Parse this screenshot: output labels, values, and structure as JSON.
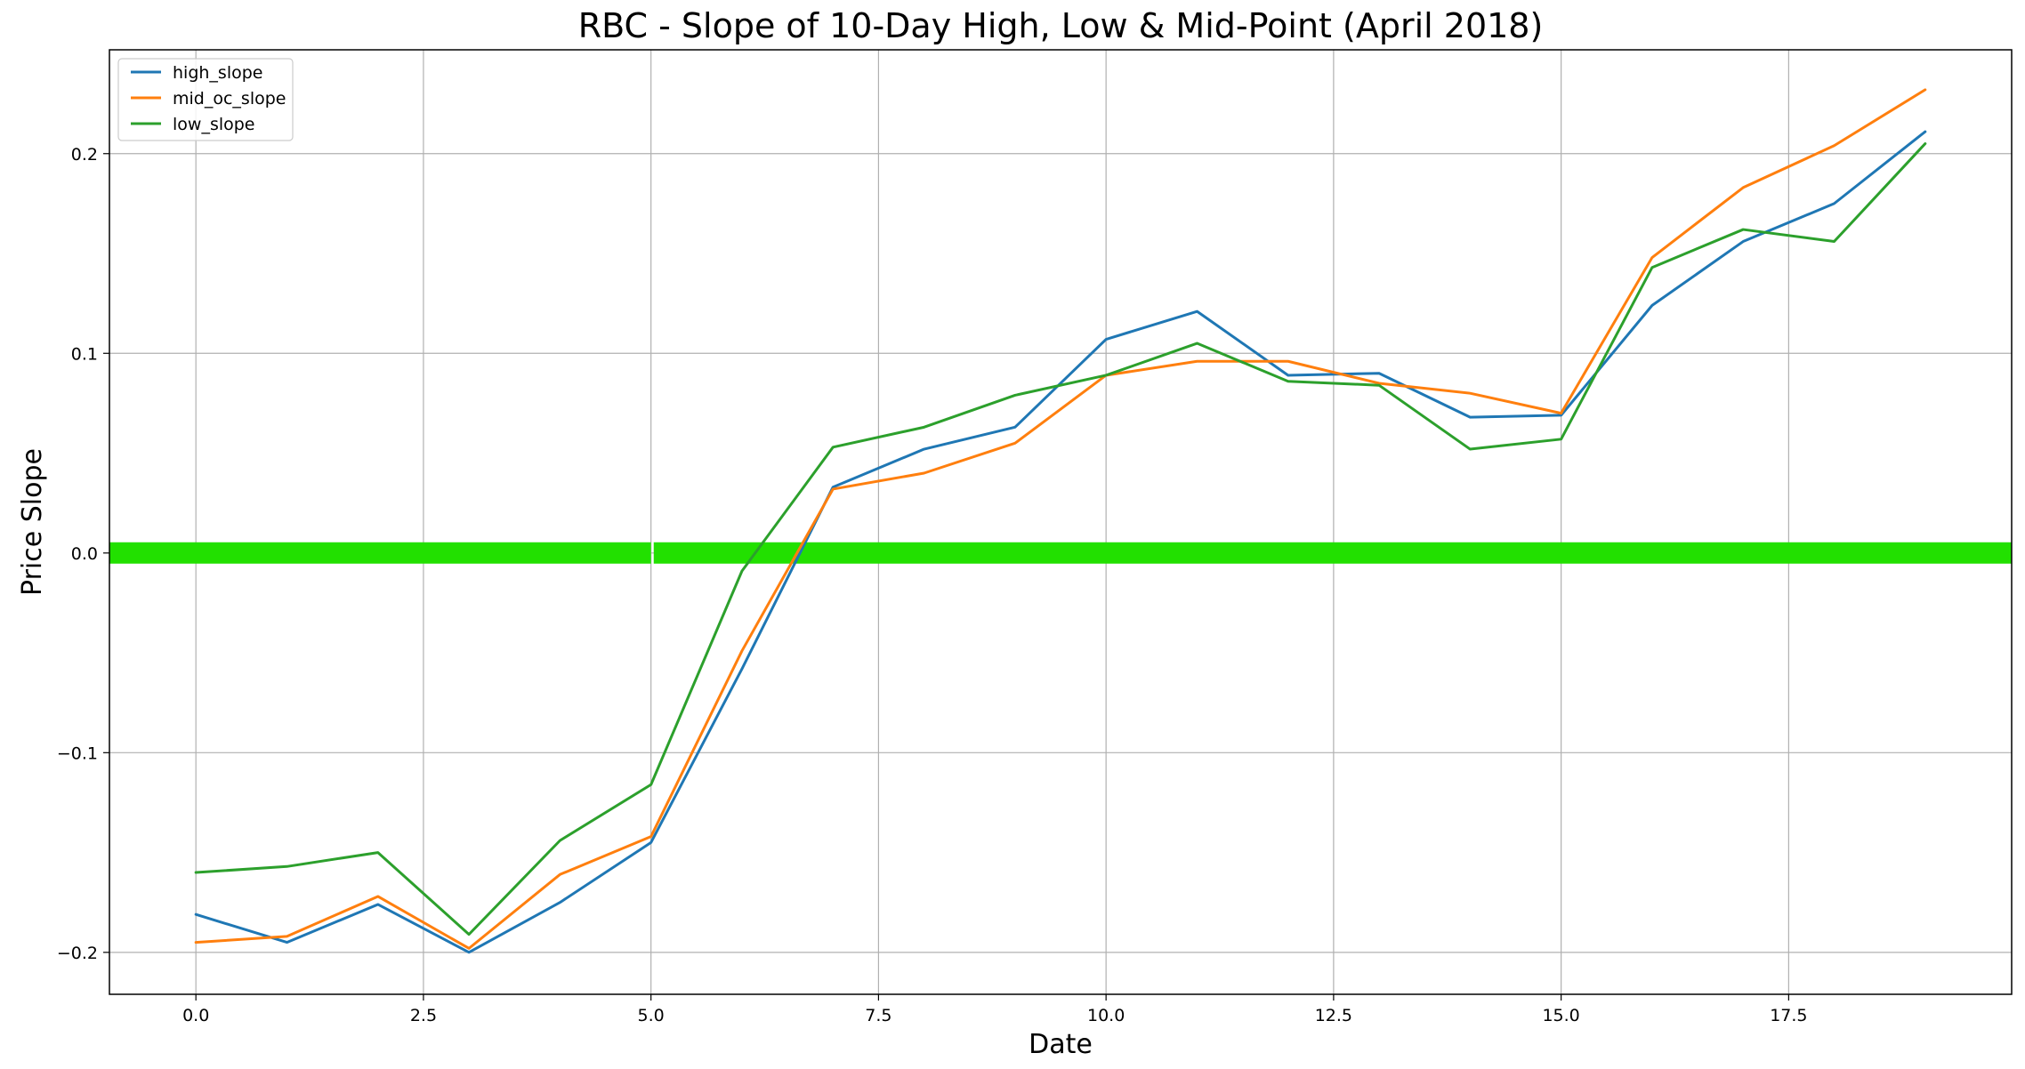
{
  "chart_data": {
    "type": "line",
    "title": "RBC - Slope of 10-Day High, Low & Mid-Point (April 2018)",
    "xlabel": "Date",
    "ylabel": "Price Slope",
    "xlim": [
      -0.95,
      19.95
    ],
    "ylim": [
      -0.221,
      0.252
    ],
    "grid": true,
    "legend_position": "top-left",
    "x_ticks": [
      0.0,
      2.5,
      5.0,
      7.5,
      10.0,
      12.5,
      15.0,
      17.5
    ],
    "x_tick_labels": [
      "0.0",
      "2.5",
      "5.0",
      "7.5",
      "10.0",
      "12.5",
      "15.0",
      "17.5"
    ],
    "y_ticks": [
      -0.2,
      -0.1,
      0.0,
      0.1,
      0.2
    ],
    "y_tick_labels": [
      "−0.2",
      "−0.1",
      "0.0",
      "0.1",
      "0.2"
    ],
    "x": [
      0,
      1,
      2,
      3,
      4,
      5,
      6,
      7,
      8,
      9,
      10,
      11,
      12,
      13,
      14,
      15,
      16,
      17,
      18,
      19
    ],
    "series": [
      {
        "name": "high_slope",
        "color": "#1f77b4",
        "values": [
          -0.181,
          -0.195,
          -0.176,
          -0.2,
          -0.175,
          -0.145,
          -0.058,
          0.033,
          0.052,
          0.063,
          0.107,
          0.121,
          0.089,
          0.09,
          0.068,
          0.069,
          0.124,
          0.156,
          0.175,
          0.211
        ]
      },
      {
        "name": "mid_oc_slope",
        "color": "#ff7f0e",
        "values": [
          -0.195,
          -0.192,
          -0.172,
          -0.198,
          -0.161,
          -0.142,
          -0.049,
          0.032,
          0.04,
          0.055,
          0.089,
          0.096,
          0.096,
          0.085,
          0.08,
          0.07,
          0.148,
          0.183,
          0.204,
          0.232
        ]
      },
      {
        "name": "low_slope",
        "color": "#2ca02c",
        "values": [
          -0.16,
          -0.157,
          -0.15,
          -0.191,
          -0.144,
          -0.116,
          -0.009,
          0.053,
          0.063,
          0.079,
          0.089,
          0.105,
          0.086,
          0.084,
          0.052,
          0.057,
          0.143,
          0.162,
          0.156,
          0.205
        ]
      }
    ],
    "reference_line": {
      "y": 0.0,
      "color": "#22e000",
      "segments": [
        [
          -0.95,
          5.0
        ],
        [
          5.03,
          19.95
        ]
      ]
    }
  }
}
